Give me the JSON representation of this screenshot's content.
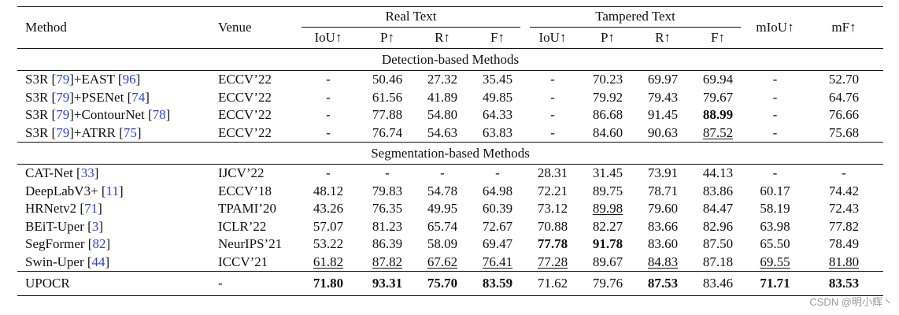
{
  "header": {
    "method": "Method",
    "venue": "Venue",
    "real_text": "Real Text",
    "tampered_text": "Tampered Text",
    "miou": "mIoU↑",
    "mf": "mF↑",
    "sub": [
      "IoU↑",
      "P↑",
      "R↑",
      "F↑",
      "IoU↑",
      "P↑",
      "R↑",
      "F↑"
    ]
  },
  "sections": {
    "detection": "Detection-based Methods",
    "segmentation": "Segmentation-based Methods"
  },
  "rows": [
    {
      "name": "S3R",
      "r1": "79",
      "plus": "+EAST",
      "r2": "96",
      "venue": "ECCV’22",
      "v": [
        "-",
        "50.46",
        "27.32",
        "35.45",
        "-",
        "70.23",
        "69.97",
        "69.94",
        "-",
        "52.70"
      ]
    },
    {
      "name": "S3R",
      "r1": "79",
      "plus": "+PSENet",
      "r2": "74",
      "venue": "ECCV’22",
      "v": [
        "-",
        "61.56",
        "41.89",
        "49.85",
        "-",
        "79.92",
        "79.43",
        "79.67",
        "-",
        "64.76"
      ]
    },
    {
      "name": "S3R",
      "r1": "79",
      "plus": "+ContourNet",
      "r2": "78",
      "venue": "ECCV’22",
      "v": [
        "-",
        "77.88",
        "54.80",
        "64.33",
        "-",
        "86.68",
        "91.45",
        "88.99",
        "-",
        "76.66"
      ]
    },
    {
      "name": "S3R",
      "r1": "79",
      "plus": "+ATRR",
      "r2": "75",
      "venue": "ECCV’22",
      "v": [
        "-",
        "76.74",
        "54.63",
        "63.83",
        "-",
        "84.60",
        "90.63",
        "87.52",
        "-",
        "75.68"
      ]
    },
    {
      "name": "CAT-Net",
      "r2": "33",
      "venue": "IJCV’22",
      "v": [
        "-",
        "-",
        "-",
        "-",
        "28.31",
        "31.45",
        "73.91",
        "44.13",
        "-",
        "-"
      ]
    },
    {
      "name": "DeepLabV3+",
      "r2": "11",
      "venue": "ECCV’18",
      "v": [
        "48.12",
        "79.83",
        "54.78",
        "64.98",
        "72.21",
        "89.75",
        "78.71",
        "83.86",
        "60.17",
        "74.42"
      ]
    },
    {
      "name": "HRNetv2",
      "r2": "71",
      "venue": "TPAMI’20",
      "v": [
        "43.26",
        "76.35",
        "49.95",
        "60.39",
        "73.12",
        "89.98",
        "79.60",
        "84.47",
        "58.19",
        "72.43"
      ]
    },
    {
      "name": "BEiT-Uper",
      "r2": "3",
      "venue": "ICLR’22",
      "v": [
        "57.07",
        "81.23",
        "65.74",
        "72.67",
        "70.88",
        "82.27",
        "83.66",
        "82.96",
        "63.98",
        "77.82"
      ]
    },
    {
      "name": "SegFormer",
      "r2": "82",
      "venue": "NeurIPS’21",
      "v": [
        "53.22",
        "86.39",
        "58.09",
        "69.47",
        "77.78",
        "91.78",
        "83.60",
        "87.50",
        "65.50",
        "78.49"
      ]
    },
    {
      "name": "Swin-Uper",
      "r2": "44",
      "venue": "ICCV’21",
      "v": [
        "61.82",
        "87.82",
        "67.62",
        "76.41",
        "77.28",
        "89.67",
        "84.83",
        "87.18",
        "69.55",
        "81.80"
      ]
    },
    {
      "name": "UPOCR",
      "venue": "-",
      "v": [
        "71.80",
        "93.31",
        "75.70",
        "83.59",
        "71.62",
        "79.76",
        "87.53",
        "83.46",
        "71.71",
        "83.53"
      ]
    }
  ],
  "watermark": "CSDN @明小辉丶"
}
